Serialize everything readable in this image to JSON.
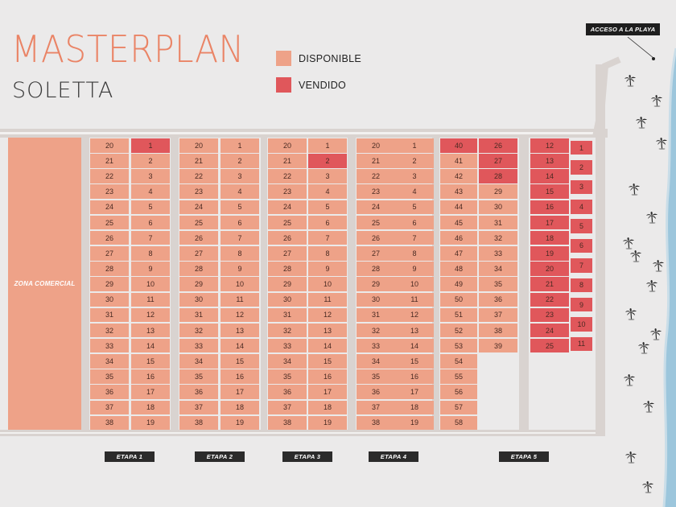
{
  "title": "MASTERPLAN",
  "subtitle": "SOLETTA",
  "legend": [
    {
      "label": "DISPONIBLE",
      "color": "#eea288"
    },
    {
      "label": "VENDIDO",
      "color": "#e0575b"
    }
  ],
  "access_label": "ACCESO A LA PLAYA",
  "zona_comercial": "ZONA COMERCIAL",
  "colors": {
    "disponible": "#eea288",
    "vendido": "#e0575b",
    "sea": "#9cc6dc"
  },
  "palm_icon": "palm-tree-icon",
  "etapas": [
    {
      "label": "ETAPA 1",
      "left": [
        "20",
        "21",
        "22",
        "23",
        "24",
        "25",
        "26",
        "27",
        "28",
        "29",
        "30",
        "31",
        "32",
        "33",
        "34",
        "35",
        "36",
        "37",
        "38"
      ],
      "right": [
        "1",
        "2",
        "3",
        "4",
        "5",
        "6",
        "7",
        "8",
        "9",
        "10",
        "11",
        "12",
        "13",
        "14",
        "15",
        "16",
        "17",
        "18",
        "19"
      ],
      "sold": [
        "1"
      ]
    },
    {
      "label": "ETAPA 2",
      "left": [
        "20",
        "21",
        "22",
        "23",
        "24",
        "25",
        "26",
        "27",
        "28",
        "29",
        "30",
        "31",
        "32",
        "33",
        "34",
        "35",
        "36",
        "37",
        "38"
      ],
      "right": [
        "1",
        "2",
        "3",
        "4",
        "5",
        "6",
        "7",
        "8",
        "9",
        "10",
        "11",
        "12",
        "13",
        "14",
        "15",
        "16",
        "17",
        "18",
        "19"
      ],
      "sold": []
    },
    {
      "label": "ETAPA 3",
      "left": [
        "20",
        "21",
        "22",
        "23",
        "24",
        "25",
        "26",
        "27",
        "28",
        "29",
        "30",
        "31",
        "32",
        "33",
        "34",
        "35",
        "36",
        "37",
        "38"
      ],
      "right": [
        "1",
        "2",
        "3",
        "4",
        "5",
        "6",
        "7",
        "8",
        "9",
        "10",
        "11",
        "12",
        "13",
        "14",
        "15",
        "16",
        "17",
        "18",
        "19"
      ],
      "sold": [
        "2"
      ]
    },
    {
      "label": "ETAPA 4",
      "left": [
        "20",
        "21",
        "22",
        "23",
        "24",
        "25",
        "26",
        "27",
        "28",
        "29",
        "30",
        "31",
        "32",
        "33",
        "34",
        "35",
        "36",
        "37",
        "38"
      ],
      "right": [
        "1",
        "2",
        "3",
        "4",
        "5",
        "6",
        "7",
        "8",
        "9",
        "10",
        "11",
        "12",
        "13",
        "14",
        "15",
        "16",
        "17",
        "18",
        "19"
      ],
      "sold": []
    },
    {
      "label": "ETAPA 5",
      "col_a": [
        "40",
        "41",
        "42",
        "43",
        "44",
        "45",
        "46",
        "47",
        "48",
        "49",
        "50",
        "51",
        "52",
        "53",
        "54",
        "55",
        "56",
        "57",
        "58"
      ],
      "col_b": [
        "26",
        "27",
        "28",
        "29",
        "30",
        "31",
        "32",
        "33",
        "34",
        "35",
        "36",
        "37",
        "38",
        "39"
      ],
      "col_c": [
        "12",
        "13",
        "14",
        "15",
        "16",
        "17",
        "18",
        "19",
        "20",
        "21",
        "22",
        "23",
        "24",
        "25"
      ],
      "col_d": [
        "1",
        "2",
        "3",
        "4",
        "5",
        "6",
        "7",
        "8",
        "9",
        "10",
        "11"
      ],
      "sold_a": [
        "40"
      ],
      "sold_b": [
        "26",
        "27",
        "28"
      ],
      "sold_c": [
        "12",
        "13",
        "14",
        "15",
        "16",
        "17",
        "18",
        "19",
        "20",
        "21",
        "22",
        "23",
        "24",
        "25"
      ],
      "sold_d": [
        "1",
        "2",
        "3",
        "4",
        "5",
        "6",
        "7",
        "8",
        "9",
        "10",
        "11"
      ]
    }
  ]
}
